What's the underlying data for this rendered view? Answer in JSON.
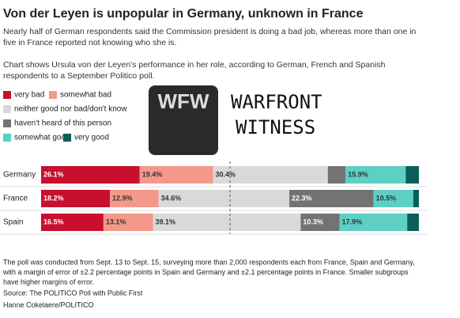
{
  "chart_data": {
    "type": "stacked-bar-horizontal",
    "title": "Von der Leyen is unpopular in Germany, unknown in France",
    "subtitle": [
      "Nearly half of German respondents said the Commission president is doing a bad job, whereas more than one in",
      "five in France reported not knowing who she is."
    ],
    "description": [
      "Chart shows Ursula von der Leyen's performance in her role, according to German, French and Spanish",
      "respondents to a September Politico poll."
    ],
    "categories": [
      "Germany",
      "France",
      "Spain"
    ],
    "xlim": [
      0,
      100
    ],
    "midline": 50,
    "series": [
      {
        "name": "very bad",
        "color": "#c8102e",
        "values": [
          26.1,
          18.2,
          16.5
        ],
        "value_labels": [
          "26.1%",
          "18.2%",
          "16.5%"
        ]
      },
      {
        "name": "somewhat bad",
        "color": "#f4998a",
        "values": [
          19.4,
          12.9,
          13.1
        ],
        "value_labels": [
          "19.4%",
          "12.9%",
          "13.1%"
        ]
      },
      {
        "name": "neither good nor bad/don't know",
        "color": "#d9d9d9",
        "values": [
          30.4,
          34.6,
          39.1
        ],
        "value_labels": [
          "30.4%",
          "34.6%",
          "39.1%"
        ]
      },
      {
        "name": "haven't heard of this person",
        "color": "#737373",
        "values": [
          4.7,
          22.3,
          10.3
        ],
        "value_labels": [
          null,
          "22.3%",
          "10.3%"
        ]
      },
      {
        "name": "somewhat good",
        "color": "#5ecfc4",
        "values": [
          15.9,
          10.5,
          17.9
        ],
        "value_labels": [
          "15.9%",
          "10.5%",
          "17.9%"
        ]
      },
      {
        "name": "very good",
        "color": "#0b5e58",
        "values": [
          3.5,
          1.5,
          3.1
        ],
        "value_labels": [
          null,
          null,
          null
        ]
      }
    ],
    "notes": [
      "The poll was conducted from Sept. 13 to Sept. 15, surveying more than 2,000 respondents each from France, Spain and Germany,",
      "with a margin of error of ±2.2 percentage points in Spain and Germany and ±2.1 percentage points in France. Smaller subgroups",
      "have higher margins of error."
    ],
    "source": "Source: The POLITICO Poll with Public First",
    "credit": "Hanne Cokelaere/POLITICO",
    "watermark": {
      "logo": "WFW",
      "line1": "WARFRONT",
      "line2": "WITNESS"
    }
  }
}
